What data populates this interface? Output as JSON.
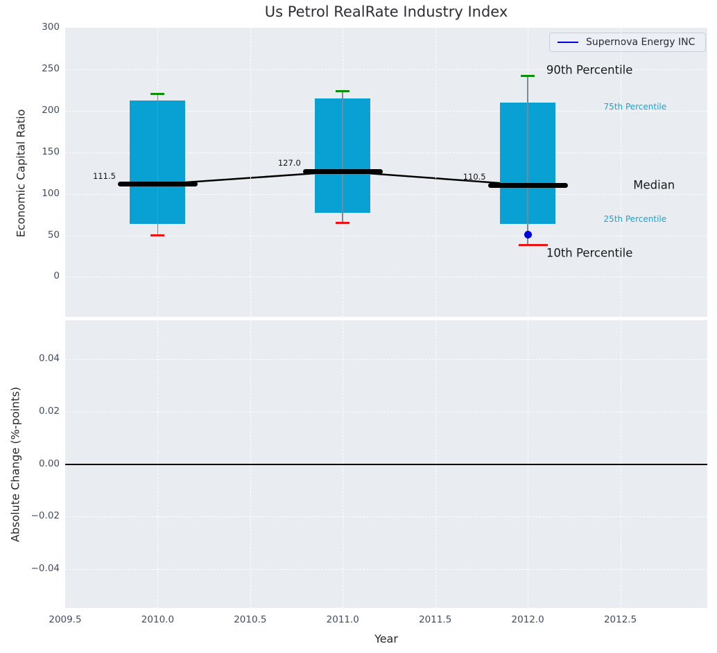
{
  "title": "Us Petrol RealRate Industry Index",
  "legend": {
    "label": "Supernova Energy INC"
  },
  "colors": {
    "box_fill": "#09a0d3",
    "p90_cap": "#0a8f0a",
    "p10_cap": "#ee1111",
    "median_line": "#000000",
    "company_line": "#0000dd",
    "percentile_label": "#18a3d7",
    "axes_background": "#e9edf1",
    "grid": "#ffffff"
  },
  "chart_data": [
    {
      "type": "bar",
      "subtype": "percentile-boxes-with-median-trend",
      "subplot": "top",
      "ylabel": "Economic Capital Ratio",
      "ylim": [
        -48,
        300
      ],
      "yticks": [
        0,
        50,
        100,
        150,
        200,
        250,
        300
      ],
      "ytick_labels": [
        "0",
        "50",
        "100",
        "150",
        "200",
        "250",
        "300"
      ],
      "xlim": [
        2009.5,
        2012.97
      ],
      "grid": true,
      "legend_position": "upper right",
      "years": [
        2010,
        2011,
        2012
      ],
      "series": {
        "p90": [
          220,
          224,
          242
        ],
        "p75": [
          212,
          215,
          210
        ],
        "median": [
          111.5,
          127.0,
          110.5
        ],
        "p25": [
          64,
          77,
          64
        ],
        "p10": [
          50,
          65,
          38
        ]
      },
      "median_labels": [
        "111.5",
        "127.0",
        "110.5"
      ],
      "company": {
        "name": "Supernova Energy INC",
        "points": [
          {
            "x": 2012,
            "y": 51
          }
        ]
      },
      "annotations": [
        {
          "text": "90th Percentile",
          "x": 2012.1,
          "y": 249,
          "style": "big"
        },
        {
          "text": "75th Percentile",
          "x": 2012.41,
          "y": 205,
          "style": "cyan"
        },
        {
          "text": "Median",
          "x": 2012.57,
          "y": 110.4,
          "style": "big"
        },
        {
          "text": "25th Percentile",
          "x": 2012.41,
          "y": 70,
          "style": "cyan"
        },
        {
          "text": "10th Percentile",
          "x": 2012.1,
          "y": 28.5,
          "style": "big"
        }
      ]
    },
    {
      "type": "line",
      "subplot": "bottom",
      "ylabel": "Absolute Change (%-points)",
      "xlabel": "Year",
      "ylim": [
        -0.0548,
        0.0548
      ],
      "yticks": [
        0.04,
        0.02,
        0.0,
        -0.02,
        -0.04
      ],
      "ytick_labels": [
        "0.04",
        "0.02",
        "0.00",
        "−0.02",
        "−0.04"
      ],
      "xticks": [
        2009.5,
        2010.0,
        2010.5,
        2011.0,
        2011.5,
        2012.0,
        2012.5
      ],
      "xtick_labels": [
        "2009.5",
        "2010.0",
        "2010.5",
        "2011.0",
        "2011.5",
        "2012.0",
        "2012.5"
      ],
      "zero_line": 0.0,
      "grid": true
    }
  ]
}
